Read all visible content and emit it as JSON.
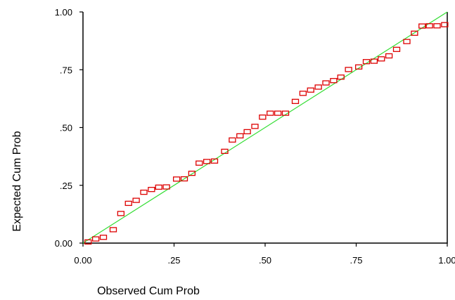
{
  "chart_data": {
    "type": "scatter",
    "title": "",
    "xlabel": "Observed Cum Prob",
    "ylabel": "Expected Cum Prob",
    "xlim": [
      0,
      1
    ],
    "ylim": [
      0,
      1
    ],
    "x_ticks": [
      "0.00",
      ".25",
      ".50",
      ".75",
      "1.00"
    ],
    "y_ticks": [
      "0.00",
      ".25",
      ".50",
      ".75",
      "1.00"
    ],
    "grid": false,
    "legend": "none",
    "reference_line": {
      "from": [
        0,
        0
      ],
      "to": [
        1,
        1
      ],
      "color": "#33dd33"
    },
    "marker": {
      "shape": "hollow-square",
      "color": "#dd0000"
    },
    "series": [
      {
        "x": [
          0.014,
          0.035,
          0.056,
          0.083,
          0.104,
          0.125,
          0.146,
          0.167,
          0.188,
          0.208,
          0.229,
          0.257,
          0.278,
          0.299,
          0.319,
          0.34,
          0.361,
          0.389,
          0.41,
          0.431,
          0.451,
          0.472,
          0.493,
          0.514,
          0.535,
          0.556,
          0.583,
          0.604,
          0.625,
          0.646,
          0.667,
          0.688,
          0.708,
          0.729,
          0.757,
          0.778,
          0.799,
          0.819,
          0.84,
          0.861,
          0.889,
          0.91,
          0.931,
          0.951,
          0.972,
          0.993
        ],
        "y": [
          0.005,
          0.018,
          0.025,
          0.058,
          0.128,
          0.172,
          0.185,
          0.22,
          0.232,
          0.242,
          0.243,
          0.277,
          0.278,
          0.302,
          0.346,
          0.353,
          0.355,
          0.397,
          0.446,
          0.464,
          0.482,
          0.505,
          0.545,
          0.562,
          0.562,
          0.562,
          0.613,
          0.648,
          0.662,
          0.675,
          0.693,
          0.703,
          0.718,
          0.751,
          0.762,
          0.785,
          0.787,
          0.797,
          0.81,
          0.838,
          0.872,
          0.908,
          0.939,
          0.94,
          0.94,
          0.945
        ]
      }
    ]
  }
}
